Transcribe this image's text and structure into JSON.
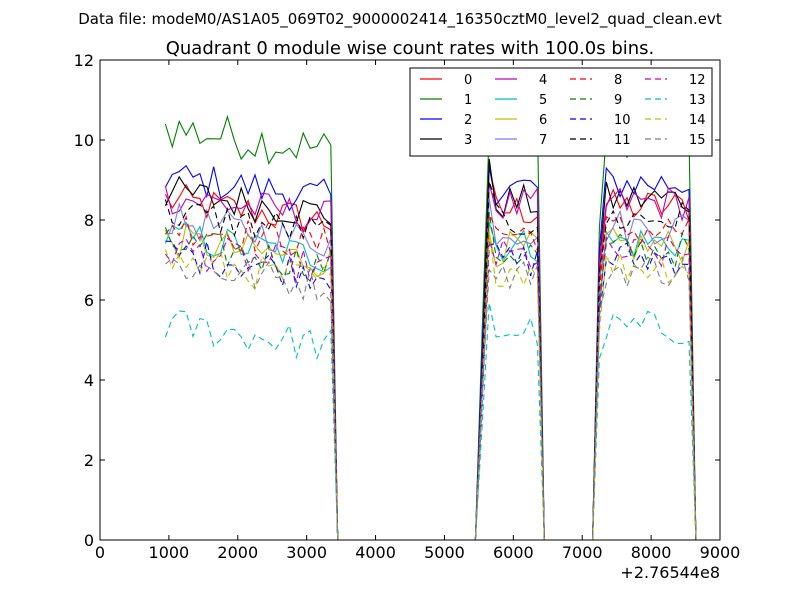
{
  "chart_data": {
    "type": "line",
    "suptitle": "Data file: modeM0/AS1A05_069T02_9000002414_16350cztM0_level2_quad_clean.evt",
    "title": "Quadrant 0 module wise count rates with 100.0s bins.",
    "xlabel": "",
    "ylabel": "",
    "x_offset_label": "+2.76544e8",
    "xlim": [
      0,
      9000
    ],
    "ylim": [
      0,
      12
    ],
    "x_ticks": [
      0,
      1000,
      2000,
      3000,
      4000,
      5000,
      6000,
      7000,
      8000,
      9000
    ],
    "y_ticks": [
      0,
      2,
      4,
      6,
      8,
      10,
      12
    ],
    "legend_position": "top-right",
    "segments": [
      {
        "x_start": 950,
        "x_end": 3350,
        "step": 100
      },
      {
        "x_start": 5550,
        "x_end": 6350,
        "step": 100
      },
      {
        "x_start": 7250,
        "x_end": 8550,
        "step": 100
      }
    ],
    "dead_points_x": [
      3450,
      3550,
      3650,
      5450,
      6450,
      6550,
      7150,
      8650
    ],
    "series": [
      {
        "name": "0",
        "color": "#ff0000",
        "dash": "solid",
        "level": 8.5
      },
      {
        "name": "1",
        "color": "#008000",
        "dash": "solid",
        "level": 10.3
      },
      {
        "name": "2",
        "color": "#0000ff",
        "dash": "solid",
        "level": 9.1
      },
      {
        "name": "3",
        "color": "#000000",
        "dash": "solid",
        "level": 8.7
      },
      {
        "name": "4",
        "color": "#bf00bf",
        "dash": "solid",
        "level": 8.6
      },
      {
        "name": "5",
        "color": "#00bfbf",
        "dash": "solid",
        "level": 7.6
      },
      {
        "name": "6",
        "color": "#bfbf00",
        "dash": "solid",
        "level": 7.5
      },
      {
        "name": "7",
        "color": "#7b7bef",
        "dash": "solid",
        "level": 8.0
      },
      {
        "name": "8",
        "color": "#ff0000",
        "dash": "dashed",
        "level": 7.9
      },
      {
        "name": "9",
        "color": "#008000",
        "dash": "dashed",
        "level": 7.4
      },
      {
        "name": "10",
        "color": "#0000ff",
        "dash": "dashed",
        "level": 7.2
      },
      {
        "name": "11",
        "color": "#000000",
        "dash": "dashed",
        "level": 8.2
      },
      {
        "name": "12",
        "color": "#bf00bf",
        "dash": "dashed",
        "level": 7.3
      },
      {
        "name": "13",
        "color": "#00bfbf",
        "dash": "dashed",
        "level": 5.4
      },
      {
        "name": "14",
        "color": "#bfbf00",
        "dash": "dashed",
        "level": 7.0
      },
      {
        "name": "15",
        "color": "#808080",
        "dash": "dashed",
        "level": 6.9
      }
    ]
  }
}
